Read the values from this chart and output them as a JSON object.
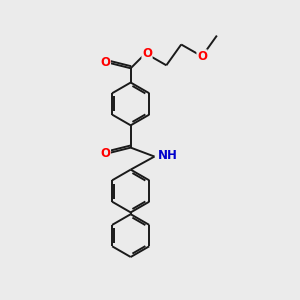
{
  "bg_color": "#ebebeb",
  "bond_color": "#1a1a1a",
  "oxygen_color": "#ff0000",
  "nitrogen_color": "#0000cc",
  "line_width": 1.4,
  "figsize": [
    3.0,
    3.0
  ],
  "dpi": 100,
  "xlim": [
    0,
    10
  ],
  "ylim": [
    0,
    10
  ]
}
